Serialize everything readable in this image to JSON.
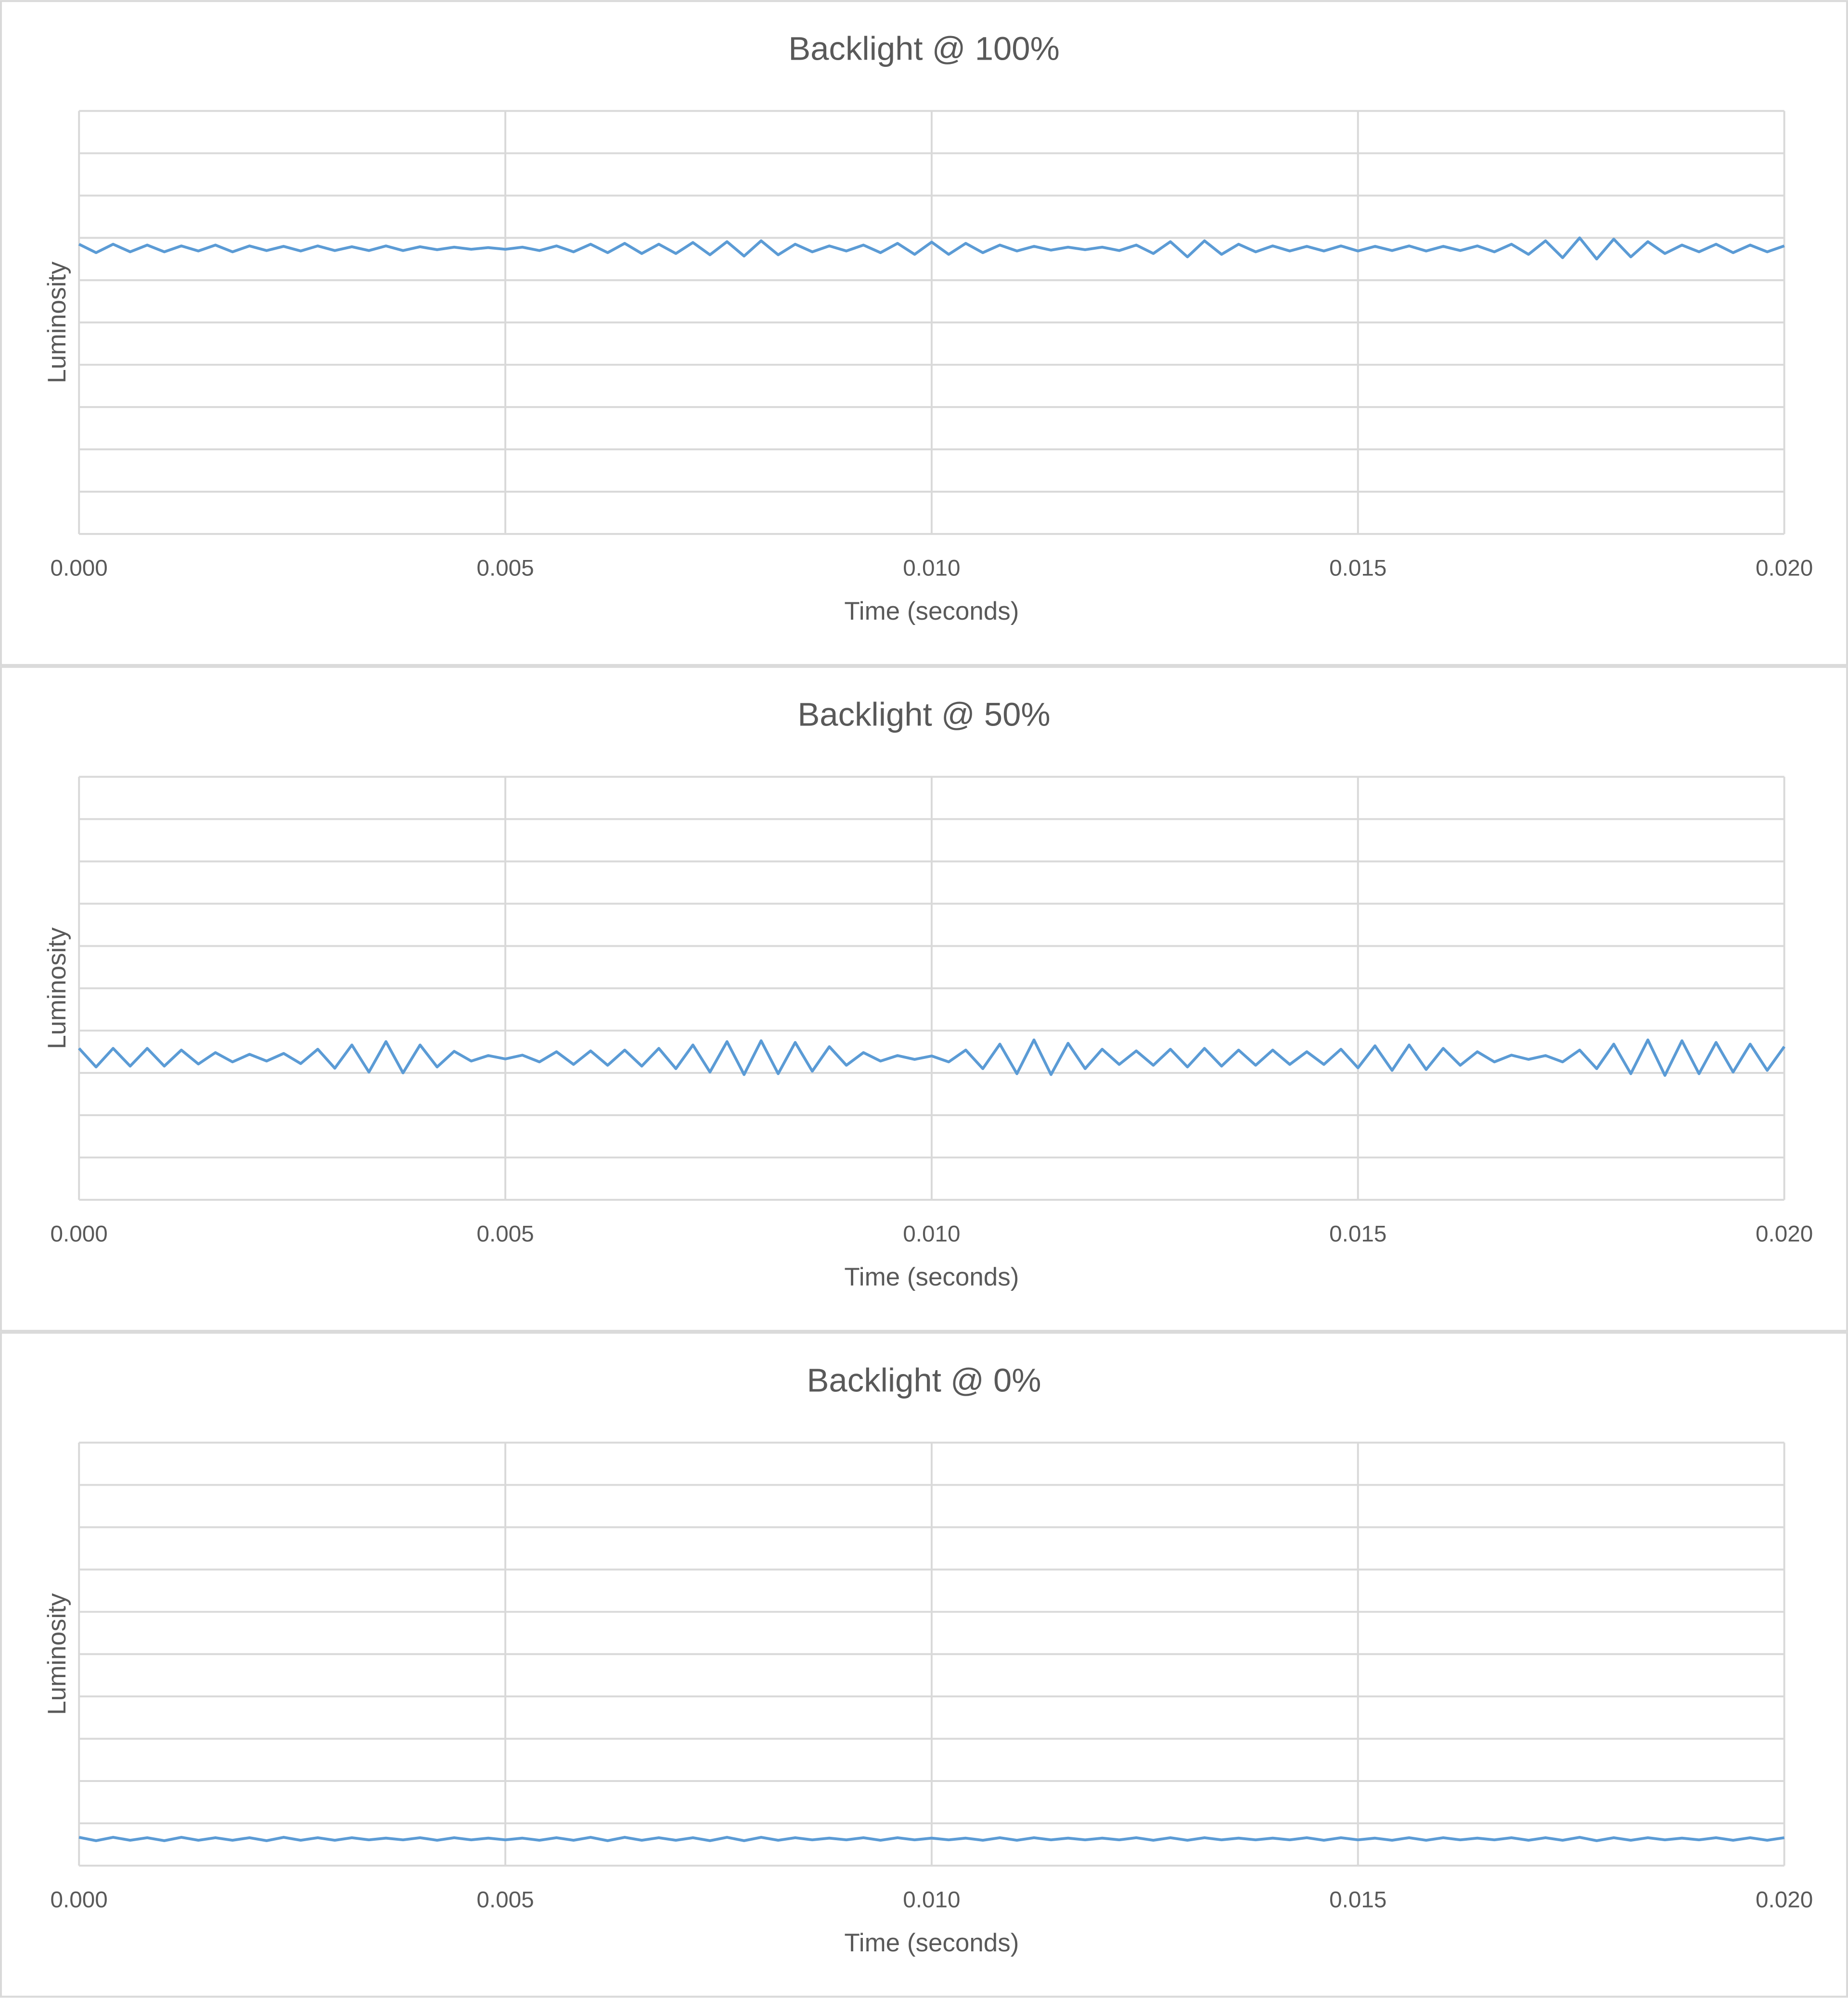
{
  "chart_data": [
    {
      "type": "line",
      "title": "Backlight @ 100%",
      "x_label": "Time (seconds)",
      "y_label": "Luminosity",
      "color": "#5b9bd5",
      "x": [
        0,
        0.0002,
        0.0004,
        0.0006,
        0.0008,
        0.001,
        0.0012,
        0.0014,
        0.0016,
        0.0018,
        0.002,
        0.0022,
        0.0024,
        0.0026,
        0.0028,
        0.003,
        0.0032,
        0.0034,
        0.0036,
        0.0038,
        0.004,
        0.0042,
        0.0044,
        0.0046,
        0.0048,
        0.005,
        0.0052,
        0.0054,
        0.0056,
        0.0058,
        0.006,
        0.0062,
        0.0064,
        0.0066,
        0.0068,
        0.007,
        0.0072,
        0.0074,
        0.0076,
        0.0078,
        0.008,
        0.0082,
        0.0084,
        0.0086,
        0.0088,
        0.009,
        0.0092,
        0.0094,
        0.0096,
        0.0098,
        0.01,
        0.0102,
        0.0104,
        0.0106,
        0.0108,
        0.011,
        0.0112,
        0.0114,
        0.0116,
        0.0118,
        0.012,
        0.0122,
        0.0124,
        0.0126,
        0.0128,
        0.013,
        0.0132,
        0.0134,
        0.0136,
        0.0138,
        0.014,
        0.0142,
        0.0144,
        0.0146,
        0.0148,
        0.015,
        0.0152,
        0.0154,
        0.0156,
        0.0158,
        0.016,
        0.0162,
        0.0164,
        0.0166,
        0.0168,
        0.017,
        0.0172,
        0.0174,
        0.0176,
        0.0178,
        0.018,
        0.0182,
        0.0184,
        0.0186,
        0.0188,
        0.019,
        0.0192,
        0.0194,
        0.0196,
        0.0198,
        0.02
      ],
      "values": [
        6.85,
        6.65,
        6.85,
        6.67,
        6.83,
        6.67,
        6.81,
        6.69,
        6.83,
        6.67,
        6.81,
        6.7,
        6.8,
        6.69,
        6.81,
        6.7,
        6.79,
        6.7,
        6.81,
        6.7,
        6.79,
        6.72,
        6.78,
        6.73,
        6.77,
        6.73,
        6.78,
        6.7,
        6.81,
        6.67,
        6.85,
        6.65,
        6.87,
        6.63,
        6.85,
        6.63,
        6.89,
        6.6,
        6.91,
        6.57,
        6.93,
        6.6,
        6.85,
        6.67,
        6.81,
        6.69,
        6.83,
        6.65,
        6.87,
        6.61,
        6.9,
        6.61,
        6.87,
        6.65,
        6.83,
        6.69,
        6.8,
        6.71,
        6.78,
        6.72,
        6.78,
        6.7,
        6.83,
        6.63,
        6.91,
        6.55,
        6.93,
        6.61,
        6.85,
        6.67,
        6.81,
        6.69,
        6.8,
        6.69,
        6.81,
        6.69,
        6.8,
        6.7,
        6.81,
        6.69,
        6.8,
        6.7,
        6.81,
        6.67,
        6.85,
        6.61,
        6.93,
        6.53,
        7.0,
        6.5,
        6.97,
        6.55,
        6.91,
        6.63,
        6.83,
        6.67,
        6.85,
        6.65,
        6.83,
        6.67,
        6.81
      ],
      "xlim": [
        0,
        0.02
      ],
      "xticks": [
        {
          "value": 0,
          "label": "0.000"
        },
        {
          "value": 0.005,
          "label": "0.005"
        },
        {
          "value": 0.01,
          "label": "0.010"
        },
        {
          "value": 0.015,
          "label": "0.015"
        },
        {
          "value": 0.02,
          "label": "0.020"
        }
      ],
      "ylim": [
        0,
        10
      ],
      "yticks": [
        0,
        1,
        2,
        3,
        4,
        5,
        6,
        7,
        8,
        9,
        10
      ],
      "show_ytick_labels": false,
      "grid": true
    },
    {
      "type": "line",
      "title": "Backlight @ 50%",
      "x_label": "Time (seconds)",
      "y_label": "Luminosity",
      "color": "#5b9bd5",
      "x": [
        0,
        0.0002,
        0.0004,
        0.0006,
        0.0008,
        0.001,
        0.0012,
        0.0014,
        0.0016,
        0.0018,
        0.002,
        0.0022,
        0.0024,
        0.0026,
        0.0028,
        0.003,
        0.0032,
        0.0034,
        0.0036,
        0.0038,
        0.004,
        0.0042,
        0.0044,
        0.0046,
        0.0048,
        0.005,
        0.0052,
        0.0054,
        0.0056,
        0.0058,
        0.006,
        0.0062,
        0.0064,
        0.0066,
        0.0068,
        0.007,
        0.0072,
        0.0074,
        0.0076,
        0.0078,
        0.008,
        0.0082,
        0.0084,
        0.0086,
        0.0088,
        0.009,
        0.0092,
        0.0094,
        0.0096,
        0.0098,
        0.01,
        0.0102,
        0.0104,
        0.0106,
        0.0108,
        0.011,
        0.0112,
        0.0114,
        0.0116,
        0.0118,
        0.012,
        0.0122,
        0.0124,
        0.0126,
        0.0128,
        0.013,
        0.0132,
        0.0134,
        0.0136,
        0.0138,
        0.014,
        0.0142,
        0.0144,
        0.0146,
        0.0148,
        0.015,
        0.0152,
        0.0154,
        0.0156,
        0.0158,
        0.016,
        0.0162,
        0.0164,
        0.0166,
        0.0168,
        0.017,
        0.0172,
        0.0174,
        0.0176,
        0.0178,
        0.018,
        0.0182,
        0.0184,
        0.0186,
        0.0188,
        0.019,
        0.0192,
        0.0194,
        0.0196,
        0.0198,
        0.02
      ],
      "values": [
        3.58,
        3.14,
        3.58,
        3.16,
        3.58,
        3.16,
        3.54,
        3.21,
        3.48,
        3.26,
        3.44,
        3.28,
        3.46,
        3.22,
        3.56,
        3.11,
        3.66,
        3.02,
        3.74,
        3.0,
        3.66,
        3.14,
        3.51,
        3.28,
        3.41,
        3.33,
        3.42,
        3.26,
        3.5,
        3.2,
        3.52,
        3.18,
        3.54,
        3.16,
        3.58,
        3.1,
        3.66,
        3.02,
        3.74,
        2.96,
        3.76,
        2.98,
        3.72,
        3.04,
        3.62,
        3.18,
        3.48,
        3.28,
        3.41,
        3.32,
        3.4,
        3.26,
        3.54,
        3.1,
        3.68,
        2.98,
        3.78,
        2.96,
        3.7,
        3.1,
        3.56,
        3.2,
        3.52,
        3.18,
        3.56,
        3.14,
        3.58,
        3.16,
        3.54,
        3.18,
        3.54,
        3.2,
        3.5,
        3.2,
        3.56,
        3.12,
        3.64,
        3.06,
        3.66,
        3.08,
        3.58,
        3.18,
        3.5,
        3.26,
        3.42,
        3.32,
        3.41,
        3.26,
        3.54,
        3.1,
        3.68,
        2.98,
        3.78,
        2.94,
        3.76,
        2.98,
        3.72,
        3.02,
        3.68,
        3.06,
        3.62
      ],
      "xlim": [
        0,
        0.02
      ],
      "xticks": [
        {
          "value": 0,
          "label": "0.000"
        },
        {
          "value": 0.005,
          "label": "0.005"
        },
        {
          "value": 0.01,
          "label": "0.010"
        },
        {
          "value": 0.015,
          "label": "0.015"
        },
        {
          "value": 0.02,
          "label": "0.020"
        }
      ],
      "ylim": [
        0,
        10
      ],
      "yticks": [
        0,
        1,
        2,
        3,
        4,
        5,
        6,
        7,
        8,
        9,
        10
      ],
      "show_ytick_labels": false,
      "grid": true
    },
    {
      "type": "line",
      "title": "Backlight @ 0%",
      "x_label": "Time (seconds)",
      "y_label": "Luminosity",
      "color": "#5b9bd5",
      "x": [
        0,
        0.0002,
        0.0004,
        0.0006,
        0.0008,
        0.001,
        0.0012,
        0.0014,
        0.0016,
        0.0018,
        0.002,
        0.0022,
        0.0024,
        0.0026,
        0.0028,
        0.003,
        0.0032,
        0.0034,
        0.0036,
        0.0038,
        0.004,
        0.0042,
        0.0044,
        0.0046,
        0.0048,
        0.005,
        0.0052,
        0.0054,
        0.0056,
        0.0058,
        0.006,
        0.0062,
        0.0064,
        0.0066,
        0.0068,
        0.007,
        0.0072,
        0.0074,
        0.0076,
        0.0078,
        0.008,
        0.0082,
        0.0084,
        0.0086,
        0.0088,
        0.009,
        0.0092,
        0.0094,
        0.0096,
        0.0098,
        0.01,
        0.0102,
        0.0104,
        0.0106,
        0.0108,
        0.011,
        0.0112,
        0.0114,
        0.0116,
        0.0118,
        0.012,
        0.0122,
        0.0124,
        0.0126,
        0.0128,
        0.013,
        0.0132,
        0.0134,
        0.0136,
        0.0138,
        0.014,
        0.0142,
        0.0144,
        0.0146,
        0.0148,
        0.015,
        0.0152,
        0.0154,
        0.0156,
        0.0158,
        0.016,
        0.0162,
        0.0164,
        0.0166,
        0.0168,
        0.017,
        0.0172,
        0.0174,
        0.0176,
        0.0178,
        0.018,
        0.0182,
        0.0184,
        0.0186,
        0.0188,
        0.019,
        0.0192,
        0.0194,
        0.0196,
        0.0198,
        0.02
      ],
      "values": [
        0.67,
        0.59,
        0.67,
        0.6,
        0.66,
        0.59,
        0.67,
        0.6,
        0.66,
        0.6,
        0.66,
        0.59,
        0.67,
        0.6,
        0.66,
        0.6,
        0.66,
        0.61,
        0.65,
        0.61,
        0.66,
        0.6,
        0.66,
        0.61,
        0.65,
        0.61,
        0.65,
        0.6,
        0.66,
        0.6,
        0.67,
        0.59,
        0.67,
        0.6,
        0.66,
        0.6,
        0.66,
        0.59,
        0.67,
        0.59,
        0.67,
        0.6,
        0.66,
        0.61,
        0.65,
        0.61,
        0.66,
        0.6,
        0.66,
        0.61,
        0.65,
        0.61,
        0.65,
        0.6,
        0.66,
        0.6,
        0.66,
        0.61,
        0.65,
        0.61,
        0.65,
        0.61,
        0.66,
        0.6,
        0.66,
        0.6,
        0.66,
        0.61,
        0.65,
        0.61,
        0.65,
        0.61,
        0.66,
        0.6,
        0.66,
        0.61,
        0.65,
        0.6,
        0.66,
        0.6,
        0.66,
        0.61,
        0.65,
        0.61,
        0.66,
        0.6,
        0.66,
        0.6,
        0.67,
        0.59,
        0.66,
        0.6,
        0.66,
        0.61,
        0.65,
        0.61,
        0.66,
        0.6,
        0.66,
        0.6,
        0.66
      ],
      "xlim": [
        0,
        0.02
      ],
      "xticks": [
        {
          "value": 0,
          "label": "0.000"
        },
        {
          "value": 0.005,
          "label": "0.005"
        },
        {
          "value": 0.01,
          "label": "0.010"
        },
        {
          "value": 0.015,
          "label": "0.015"
        },
        {
          "value": 0.02,
          "label": "0.020"
        }
      ],
      "ylim": [
        0,
        10
      ],
      "yticks": [
        0,
        1,
        2,
        3,
        4,
        5,
        6,
        7,
        8,
        9,
        10
      ],
      "show_ytick_labels": false,
      "grid": true
    }
  ]
}
